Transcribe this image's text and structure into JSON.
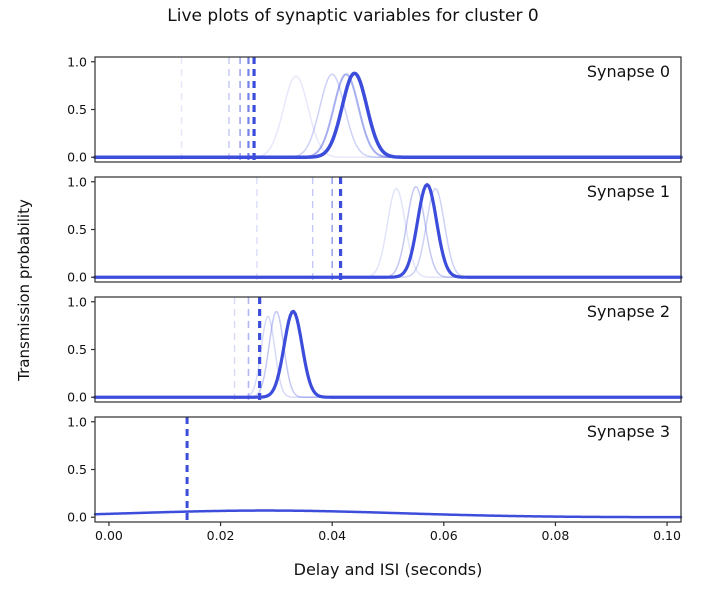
{
  "chart_data": {
    "type": "line",
    "title": "Live plots of synaptic variables for cluster 0",
    "xlabel": "Delay and ISI (seconds)",
    "ylabel": "Transmission probability",
    "xlim": [
      -0.0025,
      0.1025
    ],
    "ylim": [
      -0.05,
      1.05
    ],
    "xticks": [
      0.0,
      0.02,
      0.04,
      0.06,
      0.08,
      0.1
    ],
    "xtick_labels": [
      "0.00",
      "0.02",
      "0.04",
      "0.06",
      "0.08",
      "0.10"
    ],
    "yticks": [
      0.0,
      0.5,
      1.0
    ],
    "ytick_labels": [
      "0.0",
      "0.5",
      "1.0"
    ],
    "line_color": "#3c4ddb",
    "spine_color": "#2e2e2e",
    "grid": false,
    "legend": "none",
    "subplots": [
      {
        "label": "Synapse 0",
        "vlines": [
          {
            "x": 0.013,
            "alpha": 0.12,
            "lw": 1.4
          },
          {
            "x": 0.0215,
            "alpha": 0.3,
            "lw": 1.4
          },
          {
            "x": 0.0235,
            "alpha": 0.5,
            "lw": 1.6
          },
          {
            "x": 0.025,
            "alpha": 0.7,
            "lw": 2.2
          },
          {
            "x": 0.026,
            "alpha": 1.0,
            "lw": 3.2
          }
        ],
        "curves": [
          {
            "mu": 0.0335,
            "sigma": 0.0022,
            "amp": 0.85,
            "alpha": 0.12,
            "lw": 1.5
          },
          {
            "mu": 0.04,
            "sigma": 0.0022,
            "amp": 0.87,
            "alpha": 0.25,
            "lw": 1.5
          },
          {
            "mu": 0.0425,
            "sigma": 0.0022,
            "amp": 0.87,
            "alpha": 0.45,
            "lw": 2.0
          },
          {
            "mu": 0.044,
            "sigma": 0.0022,
            "amp": 0.88,
            "alpha": 1.0,
            "lw": 3.5
          }
        ]
      },
      {
        "label": "Synapse 1",
        "vlines": [
          {
            "x": 0.0265,
            "alpha": 0.18,
            "lw": 1.4
          },
          {
            "x": 0.0365,
            "alpha": 0.3,
            "lw": 1.4
          },
          {
            "x": 0.04,
            "alpha": 0.5,
            "lw": 1.6
          },
          {
            "x": 0.0415,
            "alpha": 1.0,
            "lw": 3.2
          }
        ],
        "curves": [
          {
            "mu": 0.0515,
            "sigma": 0.0016,
            "amp": 0.93,
            "alpha": 0.15,
            "lw": 1.5
          },
          {
            "mu": 0.055,
            "sigma": 0.0016,
            "amp": 0.95,
            "alpha": 0.3,
            "lw": 1.5
          },
          {
            "mu": 0.0585,
            "sigma": 0.0016,
            "amp": 0.93,
            "alpha": 0.25,
            "lw": 1.5
          },
          {
            "mu": 0.057,
            "sigma": 0.0017,
            "amp": 0.97,
            "alpha": 1.0,
            "lw": 3.2
          }
        ]
      },
      {
        "label": "Synapse 2",
        "vlines": [
          {
            "x": 0.0225,
            "alpha": 0.2,
            "lw": 1.4
          },
          {
            "x": 0.025,
            "alpha": 0.4,
            "lw": 1.6
          },
          {
            "x": 0.027,
            "alpha": 1.0,
            "lw": 3.2
          }
        ],
        "curves": [
          {
            "mu": 0.0285,
            "sigma": 0.0012,
            "amp": 0.85,
            "alpha": 0.2,
            "lw": 1.5
          },
          {
            "mu": 0.03,
            "sigma": 0.0013,
            "amp": 0.9,
            "alpha": 0.3,
            "lw": 1.5
          },
          {
            "mu": 0.033,
            "sigma": 0.0016,
            "amp": 0.9,
            "alpha": 1.0,
            "lw": 3.2
          }
        ]
      },
      {
        "label": "Synapse 3",
        "vlines": [
          {
            "x": 0.014,
            "alpha": 1.0,
            "lw": 3.0
          }
        ],
        "curves": [
          {
            "mu": 0.028,
            "sigma": 0.024,
            "amp": 0.07,
            "alpha": 1.0,
            "lw": 2.5
          }
        ]
      }
    ]
  }
}
